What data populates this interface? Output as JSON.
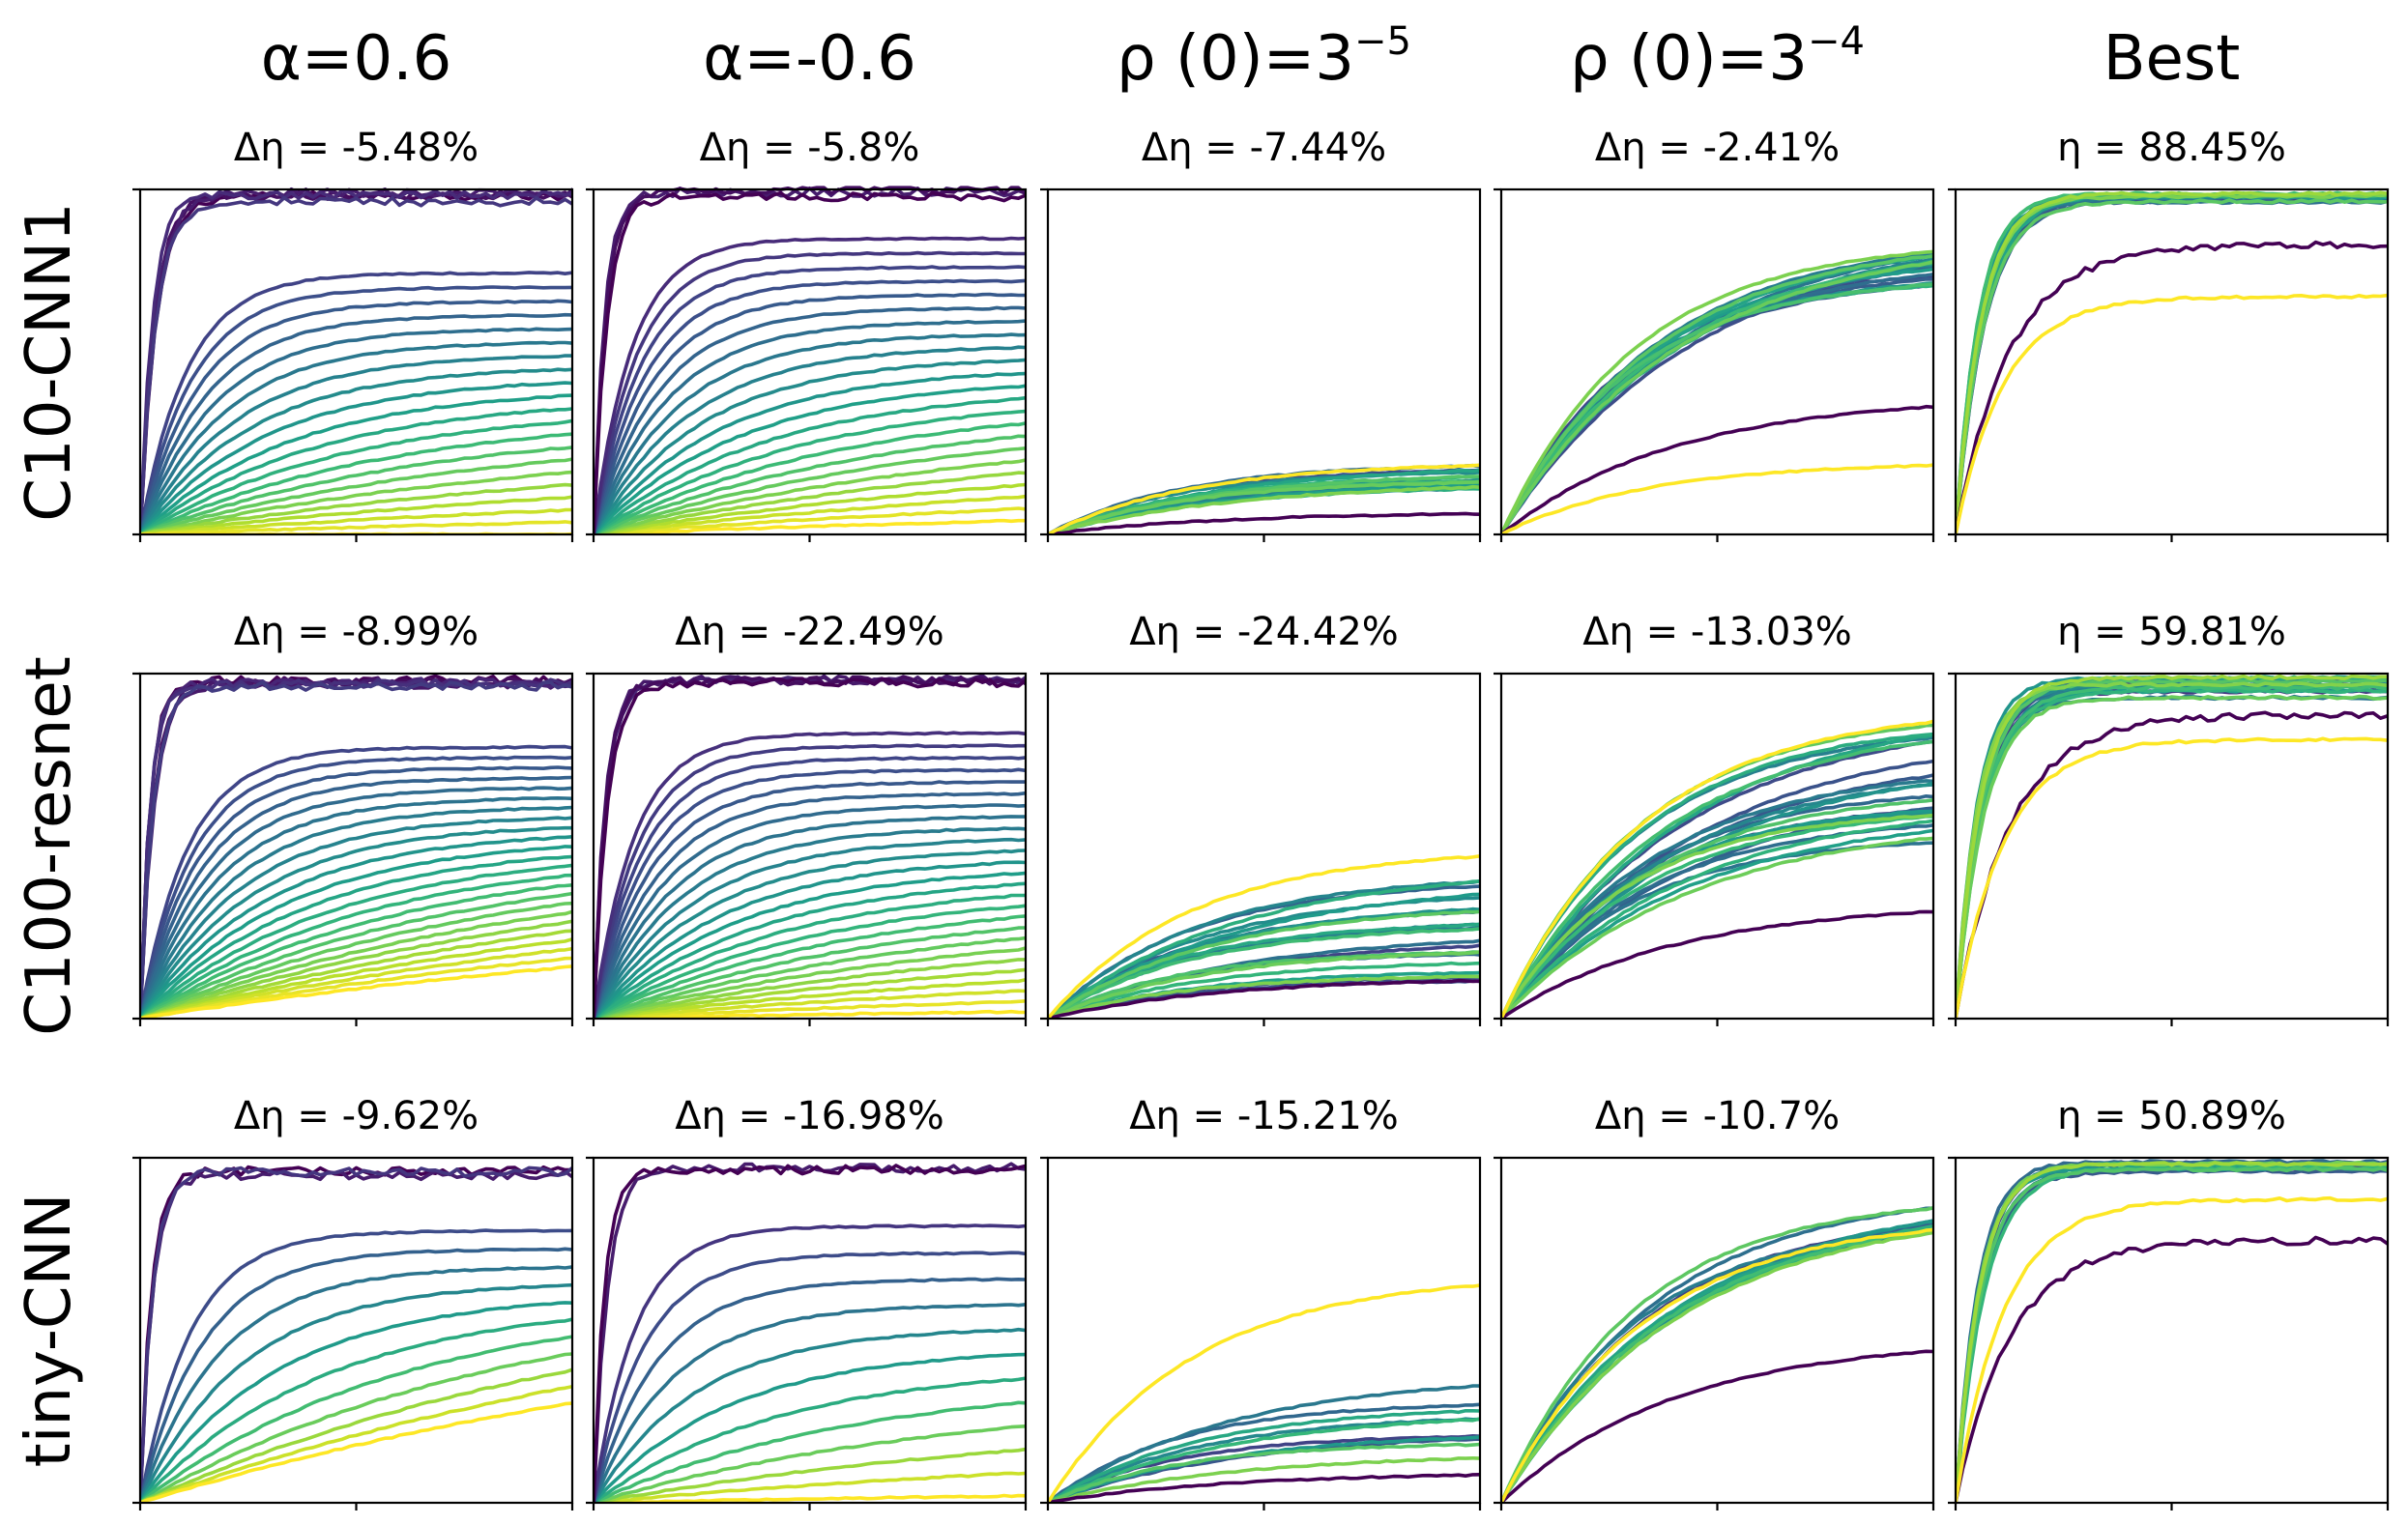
{
  "chart_data": {
    "type": "line",
    "colormap": "viridis",
    "column_titles": [
      {
        "base": "α=0.6",
        "sup": ""
      },
      {
        "base": "α=-0.6",
        "sup": ""
      },
      {
        "base": "ρ (0)=3",
        "sup": "−5"
      },
      {
        "base": "ρ (0)=3",
        "sup": "−4"
      },
      {
        "base": "Best",
        "sup": ""
      }
    ],
    "row_titles": [
      "C10-CNN1",
      "C100-resnet",
      "tiny-CNN"
    ],
    "panels": [
      [
        {
          "subtitle": "Δη = -5.48%",
          "style": "fan",
          "count": 26,
          "fast_side": "dark",
          "noisy_fast": 5,
          "min_final": 0.0,
          "max_final": 0.99
        },
        {
          "subtitle": "Δη = -5.8%",
          "style": "fan",
          "count": 26,
          "fast_side": "bright",
          "noisy_fast": 3,
          "min_final": 0.04,
          "max_final": 1.0
        },
        {
          "subtitle": "Δη = -7.44%",
          "style": "band",
          "count": 20,
          "band": [
            0.13,
            0.2
          ],
          "purple_final": 0.06,
          "yellow_final": 0.2
        },
        {
          "subtitle": "Δη = -2.41%",
          "style": "band",
          "count": 22,
          "band": [
            0.72,
            0.82
          ],
          "purple_final": 0.37,
          "yellow_final": 0.2
        },
        {
          "subtitle": "η = 88.45%",
          "style": "best",
          "count": 16,
          "band": [
            0.96,
            0.99
          ],
          "purple_final": 0.84,
          "yellow_final": 0.69
        }
      ],
      [
        {
          "subtitle": "Δη = -8.99%",
          "style": "fan",
          "count": 30,
          "fast_side": "dark",
          "noisy_fast": 6,
          "min_final": 0.15,
          "max_final": 0.99
        },
        {
          "subtitle": "Δη = -22.49%",
          "style": "fan",
          "count": 30,
          "fast_side": "bright",
          "noisy_fast": 4,
          "min_final": 0.02,
          "max_final": 0.99
        },
        {
          "subtitle": "Δη = -24.42%",
          "style": "band",
          "count": 24,
          "band": [
            0.1,
            0.48
          ],
          "purple_final": 0.11,
          "yellow_final": 0.47
        },
        {
          "subtitle": "Δη = -13.03%",
          "style": "band",
          "count": 26,
          "band": [
            0.5,
            0.86
          ],
          "purple_final": 0.31,
          "yellow_final": 0.86
        },
        {
          "subtitle": "η = 59.81%",
          "style": "best",
          "count": 20,
          "band": [
            0.93,
            0.99
          ],
          "purple_final": 0.88,
          "yellow_final": 0.81
        }
      ],
      [
        {
          "subtitle": "Δη = -9.62%",
          "style": "fan",
          "count": 14,
          "fast_side": "dark",
          "noisy_fast": 3,
          "min_final": 0.29,
          "max_final": 0.97
        },
        {
          "subtitle": "Δη = -16.98%",
          "style": "fan",
          "count": 14,
          "fast_side": "bright",
          "noisy_fast": 2,
          "min_final": 0.02,
          "max_final": 0.98
        },
        {
          "subtitle": "Δη = -15.21%",
          "style": "band",
          "count": 12,
          "band": [
            0.12,
            0.36
          ],
          "purple_final": 0.08,
          "yellow_final": 0.63
        },
        {
          "subtitle": "Δη = -10.7%",
          "style": "band",
          "count": 14,
          "band": [
            0.78,
            0.86
          ],
          "purple_final": 0.44,
          "yellow_final": 0.79
        },
        {
          "subtitle": "η = 50.89%",
          "style": "best",
          "count": 14,
          "band": [
            0.96,
            0.99
          ],
          "purple_final": 0.76,
          "yellow_final": 0.88
        }
      ]
    ]
  }
}
